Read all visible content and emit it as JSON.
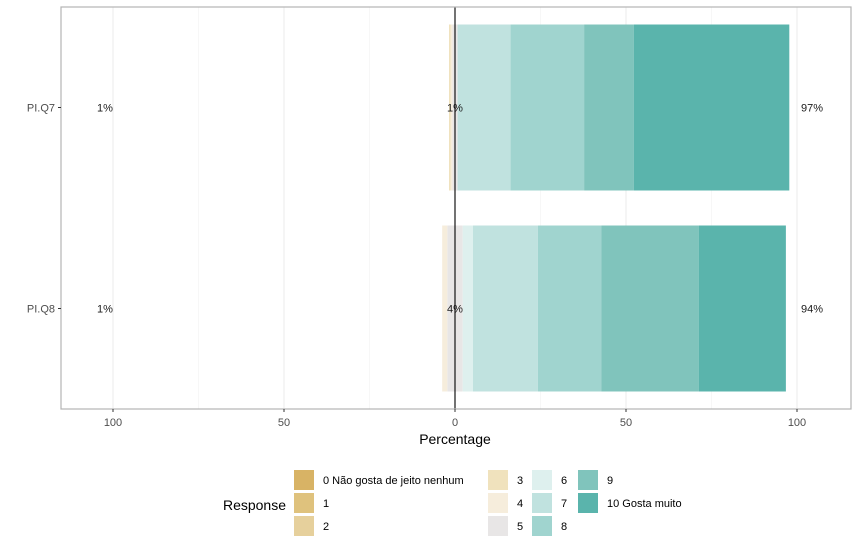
{
  "chart_data": {
    "type": "bar",
    "orientation": "horizontal",
    "stacked": "diverging",
    "xlabel": "Percentage",
    "xlim": [
      -100,
      100
    ],
    "x_ticks": [
      -100,
      -50,
      0,
      50,
      100
    ],
    "x_tick_labels": [
      "100",
      "50",
      "0",
      "50",
      "100"
    ],
    "grid": true,
    "categories": [
      "PI.Q7",
      "PI.Q8"
    ],
    "legend": {
      "title": "Response",
      "placement": "bottom",
      "entries": [
        {
          "label": "0 Não gosta de jeito nenhum",
          "color": "#d8b365"
        },
        {
          "label": "1",
          "color": "#dfc27d"
        },
        {
          "label": "2",
          "color": "#e6d09c"
        },
        {
          "label": "3",
          "color": "#f0e2bd"
        },
        {
          "label": "4",
          "color": "#f6eddc"
        },
        {
          "label": "5",
          "color": "#e8e6e6"
        },
        {
          "label": "6",
          "color": "#def0ee"
        },
        {
          "label": "7",
          "color": "#c0e2df"
        },
        {
          "label": "8",
          "color": "#a0d4cf"
        },
        {
          "label": "9",
          "color": "#80c4bc"
        },
        {
          "label": "10 Gosta muito",
          "color": "#5ab4ac"
        }
      ]
    },
    "series": [
      {
        "name": "0 Não gosta de jeito nenhum",
        "values": [
          0,
          0
        ]
      },
      {
        "name": "1",
        "values": [
          0,
          0
        ]
      },
      {
        "name": "2",
        "values": [
          0,
          0
        ]
      },
      {
        "name": "3",
        "values": [
          0.5,
          0
        ]
      },
      {
        "name": "4",
        "values": [
          0.5,
          1.5
        ]
      },
      {
        "name": "5",
        "values": [
          1.5,
          4.5
        ]
      },
      {
        "name": "6",
        "values": [
          0,
          3
        ]
      },
      {
        "name": "7",
        "values": [
          15.5,
          19
        ]
      },
      {
        "name": "8",
        "values": [
          21.5,
          18.5
        ]
      },
      {
        "name": "9",
        "values": [
          14.5,
          28.5
        ]
      },
      {
        "name": "10 Gosta muito",
        "values": [
          45.5,
          25.5
        ]
      }
    ],
    "low_labels": [
      "1%",
      "1%"
    ],
    "neutral_labels": [
      "1%",
      "4%"
    ],
    "high_labels": [
      "97%",
      "94%"
    ]
  }
}
